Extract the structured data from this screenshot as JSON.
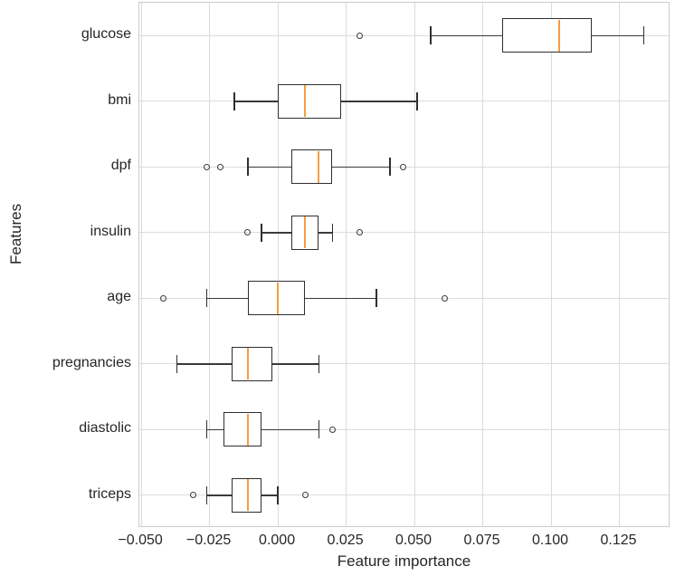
{
  "chart_data": {
    "type": "boxplot",
    "orientation": "horizontal",
    "title": "",
    "xlabel": "Feature importance",
    "ylabel": "Features",
    "categories": [
      "glucose",
      "bmi",
      "dpf",
      "insulin",
      "age",
      "pregnancies",
      "diastolic",
      "triceps"
    ],
    "series": [
      {
        "name": "glucose",
        "whislo": 0.056,
        "q1": 0.082,
        "med": 0.103,
        "q3": 0.115,
        "whishi": 0.134,
        "fliers": [
          0.03
        ]
      },
      {
        "name": "bmi",
        "whislo": -0.016,
        "q1": 0.0,
        "med": 0.01,
        "q3": 0.023,
        "whishi": 0.051,
        "fliers": []
      },
      {
        "name": "dpf",
        "whislo": -0.011,
        "q1": 0.005,
        "med": 0.015,
        "q3": 0.02,
        "whishi": 0.041,
        "fliers": [
          -0.026,
          -0.021,
          0.046
        ]
      },
      {
        "name": "insulin",
        "whislo": -0.006,
        "q1": 0.005,
        "med": 0.01,
        "q3": 0.015,
        "whishi": 0.02,
        "fliers": [
          -0.011,
          0.03
        ]
      },
      {
        "name": "age",
        "whislo": -0.026,
        "q1": -0.011,
        "med": 0.0,
        "q3": 0.01,
        "whishi": 0.036,
        "fliers": [
          -0.042,
          0.061
        ]
      },
      {
        "name": "pregnancies",
        "whislo": -0.037,
        "q1": -0.017,
        "med": -0.011,
        "q3": -0.002,
        "whishi": 0.015,
        "fliers": []
      },
      {
        "name": "diastolic",
        "whislo": -0.026,
        "q1": -0.02,
        "med": -0.011,
        "q3": -0.006,
        "whishi": 0.015,
        "fliers": [
          0.02
        ]
      },
      {
        "name": "triceps",
        "whislo": -0.026,
        "q1": -0.017,
        "med": -0.011,
        "q3": -0.006,
        "whishi": 0.0,
        "fliers": [
          -0.031,
          0.01
        ]
      }
    ],
    "xlim": [
      -0.0507,
      0.1437
    ],
    "x_tick_values": [
      -0.05,
      -0.025,
      0.0,
      0.025,
      0.05,
      0.075,
      0.1,
      0.125
    ],
    "x_tick_labels": [
      "−0.050",
      "−0.025",
      "0.000",
      "0.025",
      "0.050",
      "0.075",
      "0.100",
      "0.125"
    ],
    "grid": true,
    "legend": false,
    "colors": {
      "median": "#f59d43",
      "box_edge": "#2f2f2f",
      "whisker": "#3a3a3a",
      "grid": "#dcdcdc",
      "spine": "#cccccc",
      "text": "#262626",
      "background": "#ffffff"
    }
  }
}
